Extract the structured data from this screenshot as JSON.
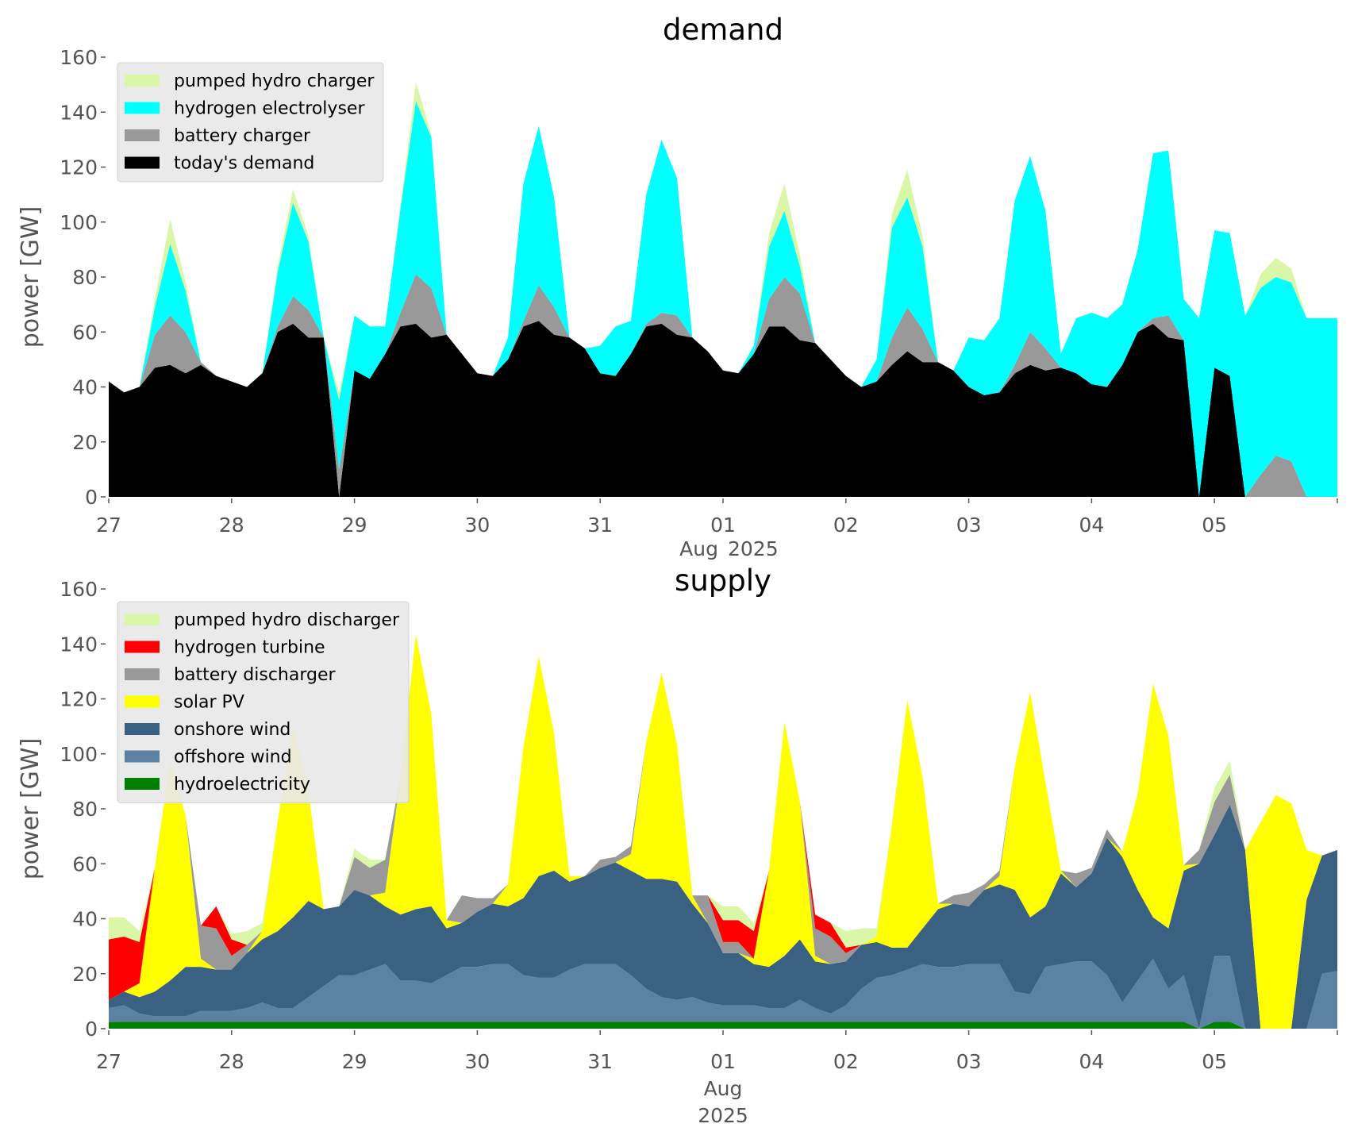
{
  "chart_data": [
    {
      "type": "area",
      "stacked": true,
      "title": "demand",
      "ylabel": "power [GW]",
      "xlabel": "",
      "ylim": [
        0,
        160
      ],
      "yticks": [
        "0",
        "20",
        "40",
        "60",
        "80",
        "100",
        "120",
        "140",
        "160"
      ],
      "x_start": "2025-07-27 00:00",
      "x_end": "2025-08-06 00:00",
      "x_step_hours": 3,
      "xticks": [
        "27",
        "28",
        "29",
        "30",
        "31",
        "01",
        "02",
        "03",
        "04",
        "05"
      ],
      "xtick_sub": [
        "Aug",
        "2025"
      ],
      "legend_position": "top-left",
      "series": [
        {
          "name": "today's demand",
          "color": "#000000",
          "values": [
            42,
            38,
            40,
            47,
            48,
            45,
            48,
            44,
            42,
            40,
            45,
            60,
            63,
            58,
            58,
            0,
            46,
            43,
            52,
            62,
            63,
            58,
            59,
            52,
            45,
            44,
            50,
            62,
            64,
            59,
            58,
            54,
            45,
            44,
            52,
            62,
            63,
            59,
            58,
            53,
            46,
            45,
            52,
            62,
            62,
            57,
            56,
            50,
            44,
            40,
            42,
            48,
            53,
            49,
            49,
            46,
            40,
            37,
            38,
            45,
            48,
            46,
            47,
            45,
            41,
            40,
            48,
            60,
            63,
            58,
            57,
            0,
            47,
            44,
            0,
            0,
            0,
            0,
            0,
            0,
            0
          ]
        },
        {
          "name": "battery charger",
          "color": "#999999",
          "values": [
            0,
            0,
            0,
            12,
            18,
            15,
            1,
            0,
            0,
            0,
            0,
            2,
            10,
            10,
            0,
            10,
            0,
            0,
            0,
            5,
            18,
            18,
            0,
            0,
            0,
            0,
            0,
            2,
            13,
            10,
            0,
            0,
            0,
            0,
            0,
            1,
            4,
            7,
            0,
            0,
            0,
            0,
            0,
            10,
            18,
            17,
            0,
            0,
            0,
            0,
            0,
            10,
            16,
            12,
            0,
            0,
            0,
            0,
            0,
            3,
            12,
            8,
            0,
            0,
            0,
            0,
            0,
            0,
            2,
            8,
            0,
            0,
            0,
            0,
            0,
            8,
            15,
            13,
            0,
            0,
            0
          ]
        },
        {
          "name": "hydrogen electrolyser",
          "color": "#00ffff",
          "values": [
            0,
            0,
            0,
            10,
            26,
            15,
            0,
            0,
            0,
            0,
            0,
            20,
            34,
            25,
            0,
            25,
            20,
            19,
            10,
            38,
            63,
            55,
            0,
            0,
            0,
            0,
            8,
            50,
            58,
            40,
            0,
            0,
            10,
            18,
            12,
            47,
            63,
            50,
            0,
            0,
            0,
            0,
            3,
            19,
            24,
            10,
            0,
            0,
            0,
            0,
            8,
            40,
            40,
            30,
            0,
            0,
            18,
            20,
            27,
            60,
            64,
            50,
            5,
            20,
            26,
            25,
            22,
            30,
            60,
            60,
            15,
            65,
            50,
            52,
            66,
            68,
            65,
            65,
            65,
            65,
            65
          ]
        },
        {
          "name": "pumped hydro charger",
          "color": "#d9f7a6",
          "values": [
            0,
            0,
            0,
            3,
            9,
            3,
            0,
            0,
            0,
            0,
            0,
            2,
            5,
            2,
            0,
            3,
            0,
            0,
            0,
            1,
            7,
            1,
            0,
            0,
            0,
            0,
            0,
            0,
            0,
            0,
            0,
            0,
            0,
            0,
            0,
            0,
            0,
            0,
            0,
            0,
            0,
            0,
            0,
            5,
            10,
            4,
            0,
            0,
            0,
            0,
            0,
            5,
            10,
            4,
            0,
            0,
            0,
            0,
            0,
            0,
            0,
            0,
            0,
            0,
            0,
            0,
            0,
            0,
            0,
            0,
            0,
            0,
            0,
            0,
            0,
            5,
            7,
            5,
            0,
            0,
            0
          ]
        }
      ]
    },
    {
      "type": "area",
      "stacked": true,
      "title": "supply",
      "ylabel": "power [GW]",
      "xlabel": "",
      "ylim": [
        0,
        160
      ],
      "yticks": [
        "0",
        "20",
        "40",
        "60",
        "80",
        "100",
        "120",
        "140",
        "160"
      ],
      "x_start": "2025-07-27 00:00",
      "x_end": "2025-08-06 00:00",
      "x_step_hours": 3,
      "xticks": [
        "27",
        "28",
        "29",
        "30",
        "31",
        "01",
        "02",
        "03",
        "04",
        "05"
      ],
      "xtick_sub": [
        "Aug",
        "2025"
      ],
      "legend_position": "top-left",
      "series": [
        {
          "name": "hydroelectricity",
          "color": "#008000",
          "values": [
            2.5,
            2.5,
            2.5,
            2.5,
            2.5,
            2.5,
            2.5,
            2.5,
            2.5,
            2.5,
            2.5,
            2.5,
            2.5,
            2.5,
            2.5,
            2.5,
            2.5,
            2.5,
            2.5,
            2.5,
            2.5,
            2.5,
            2.5,
            2.5,
            2.5,
            2.5,
            2.5,
            2.5,
            2.5,
            2.5,
            2.5,
            2.5,
            2.5,
            2.5,
            2.5,
            2.5,
            2.5,
            2.5,
            2.5,
            2.5,
            2.5,
            2.5,
            2.5,
            2.5,
            2.5,
            2.5,
            2.5,
            2.5,
            2.5,
            2.5,
            2.5,
            2.5,
            2.5,
            2.5,
            2.5,
            2.5,
            2.5,
            2.5,
            2.5,
            2.5,
            2.5,
            2.5,
            2.5,
            2.5,
            2.5,
            2.5,
            2.5,
            2.5,
            2.5,
            2.5,
            2.5,
            0,
            2.5,
            2.5,
            0,
            0,
            0,
            0,
            0,
            0,
            0
          ]
        },
        {
          "name": "offshore wind",
          "color": "#5b82a4",
          "values": [
            5,
            6,
            3,
            2,
            2,
            2,
            4,
            4,
            4,
            5,
            7,
            5,
            5,
            9,
            13,
            17,
            17,
            19,
            21,
            15,
            15,
            14,
            17,
            20,
            20,
            21,
            21,
            17,
            16,
            16,
            19,
            21,
            21,
            21,
            17,
            12,
            9,
            8,
            9,
            7,
            6,
            6,
            6,
            5,
            5,
            8,
            5,
            3,
            6,
            12,
            16,
            17,
            19,
            21,
            20,
            20,
            21,
            21,
            21,
            11,
            10,
            20,
            21,
            22,
            22,
            17,
            7,
            15,
            23,
            12,
            17,
            0,
            24,
            24,
            0,
            0,
            0,
            0,
            0,
            20,
            21
          ]
        },
        {
          "name": "onshore wind",
          "color": "#3b6182",
          "values": [
            3,
            5,
            6,
            9,
            13,
            18,
            16,
            15,
            15,
            20,
            23,
            28,
            33,
            35,
            28,
            25,
            31,
            27,
            21,
            24,
            26,
            28,
            17,
            16,
            20,
            22,
            21,
            28,
            37,
            39,
            32,
            32,
            35,
            37,
            38,
            40,
            43,
            43,
            34,
            29,
            19,
            19,
            15,
            15,
            19,
            22,
            17,
            18,
            16,
            16,
            13,
            10,
            8,
            13,
            21,
            23,
            21,
            27,
            29,
            37,
            28,
            22,
            33,
            27,
            32,
            50,
            53,
            33,
            15,
            22,
            38,
            60,
            44,
            55,
            65,
            0,
            0,
            0,
            47,
            43,
            44
          ]
        },
        {
          "name": "solar PV",
          "color": "#ffff00",
          "values": [
            0,
            0,
            5,
            45,
            80,
            55,
            3,
            0,
            0,
            0,
            3,
            40,
            70,
            40,
            0,
            0,
            0,
            0,
            5,
            50,
            100,
            70,
            3,
            0,
            0,
            0,
            8,
            55,
            80,
            50,
            2,
            0,
            0,
            0,
            6,
            50,
            75,
            50,
            3,
            0,
            0,
            0,
            2,
            35,
            85,
            50,
            2,
            0,
            0,
            0,
            2,
            45,
            90,
            55,
            2,
            0,
            0,
            0,
            3,
            45,
            82,
            45,
            1,
            0,
            0,
            0,
            2,
            35,
            85,
            70,
            2,
            0,
            0,
            0,
            0,
            75,
            85,
            82,
            18,
            0,
            0
          ]
        },
        {
          "name": "battery discharger",
          "color": "#999999",
          "values": [
            0,
            0,
            0,
            0,
            0,
            0,
            12,
            15,
            5,
            3,
            0,
            0,
            0,
            0,
            0,
            0,
            12,
            10,
            12,
            0,
            0,
            0,
            0,
            10,
            5,
            2,
            0,
            0,
            0,
            0,
            0,
            0,
            3,
            2,
            3,
            0,
            0,
            0,
            0,
            10,
            4,
            4,
            0,
            0,
            0,
            0,
            10,
            10,
            3,
            0,
            0,
            0,
            0,
            0,
            0,
            3,
            5,
            2,
            2,
            0,
            0,
            0,
            0,
            5,
            2,
            3,
            0,
            0,
            0,
            0,
            0,
            5,
            12,
            11,
            0,
            0,
            0,
            0,
            0,
            0,
            0
          ]
        },
        {
          "name": "hydrogen turbine",
          "color": "#ff0000",
          "values": [
            22,
            20,
            15,
            0,
            0,
            0,
            0,
            8,
            6,
            0,
            0,
            0,
            0,
            0,
            0,
            0,
            0,
            0,
            0,
            0,
            0,
            0,
            0,
            0,
            0,
            0,
            0,
            0,
            0,
            0,
            0,
            0,
            0,
            0,
            0,
            0,
            0,
            0,
            0,
            0,
            8,
            8,
            10,
            0,
            0,
            0,
            5,
            5,
            2,
            0,
            0,
            0,
            0,
            0,
            0,
            0,
            0,
            0,
            0,
            0,
            0,
            0,
            0,
            0,
            0,
            0,
            0,
            0,
            0,
            0,
            0,
            0,
            0,
            0,
            0,
            0,
            0,
            0,
            0,
            0,
            0
          ]
        },
        {
          "name": "pumped hydro discharger",
          "color": "#d9f7a6",
          "values": [
            8,
            7,
            4,
            0,
            0,
            0,
            0,
            0,
            2,
            5,
            3,
            0,
            0,
            0,
            0,
            0,
            3,
            3,
            0,
            0,
            0,
            0,
            0,
            0,
            0,
            0,
            0,
            0,
            0,
            0,
            0,
            0,
            0,
            0,
            0,
            0,
            0,
            0,
            0,
            0,
            5,
            5,
            3,
            0,
            0,
            0,
            0,
            0,
            6,
            6,
            3,
            0,
            0,
            0,
            0,
            0,
            0,
            0,
            0,
            0,
            0,
            0,
            0,
            0,
            0,
            0,
            0,
            0,
            0,
            0,
            0,
            0,
            5,
            5,
            0,
            0,
            0,
            0,
            0,
            0,
            0
          ]
        }
      ]
    }
  ]
}
